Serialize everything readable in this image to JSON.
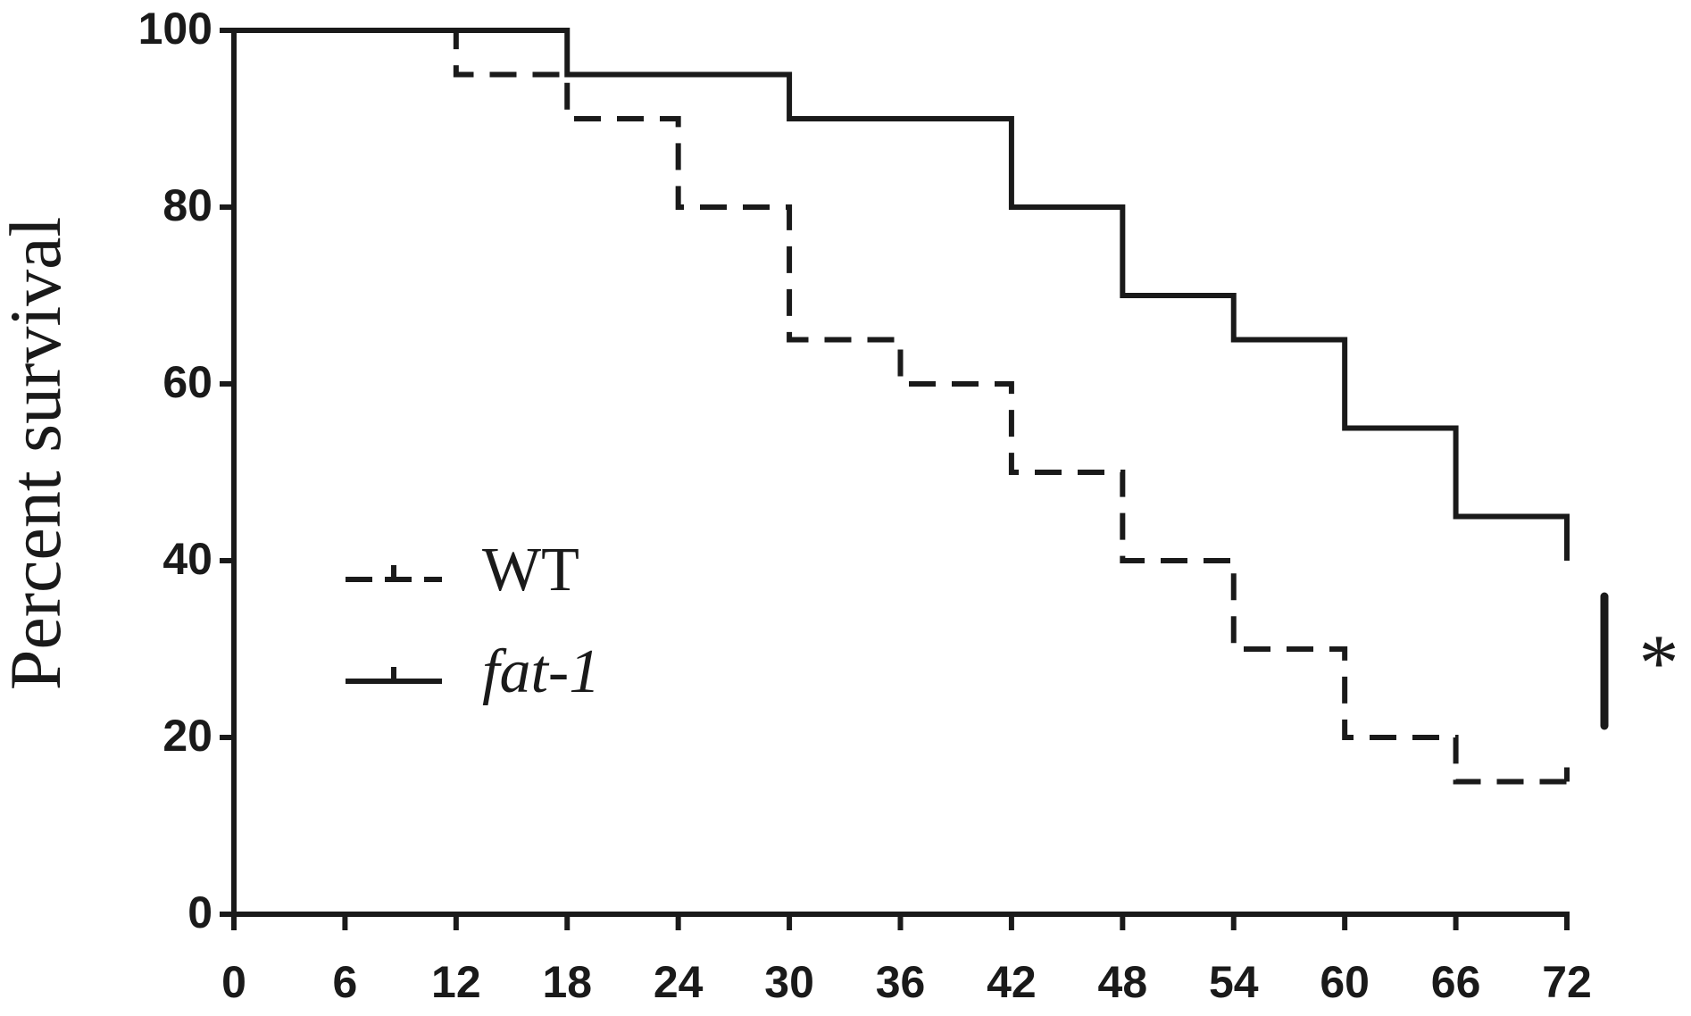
{
  "chart_data": {
    "type": "step",
    "y_label": "Percent survival",
    "x": [
      0,
      6,
      12,
      18,
      24,
      30,
      36,
      42,
      48,
      54,
      60,
      66,
      72
    ],
    "series": [
      {
        "name": "WT",
        "color": "#1a1a1a",
        "dash": true,
        "values": [
          100,
          100,
          95,
          90,
          80,
          65,
          60,
          50,
          40,
          30,
          20,
          15,
          15
        ]
      },
      {
        "name": "fat-1",
        "color": "#1a1a1a",
        "dash": false,
        "values": [
          100,
          100,
          100,
          95,
          95,
          90,
          90,
          80,
          70,
          65,
          55,
          45,
          40
        ]
      }
    ],
    "xlim": [
      0,
      72
    ],
    "xticks": [
      0,
      6,
      12,
      18,
      24,
      30,
      36,
      42,
      48,
      54,
      60,
      66,
      72
    ],
    "ylim": [
      0,
      100
    ],
    "yticks": [
      0,
      20,
      40,
      60,
      80,
      100
    ],
    "annotation": "*"
  }
}
